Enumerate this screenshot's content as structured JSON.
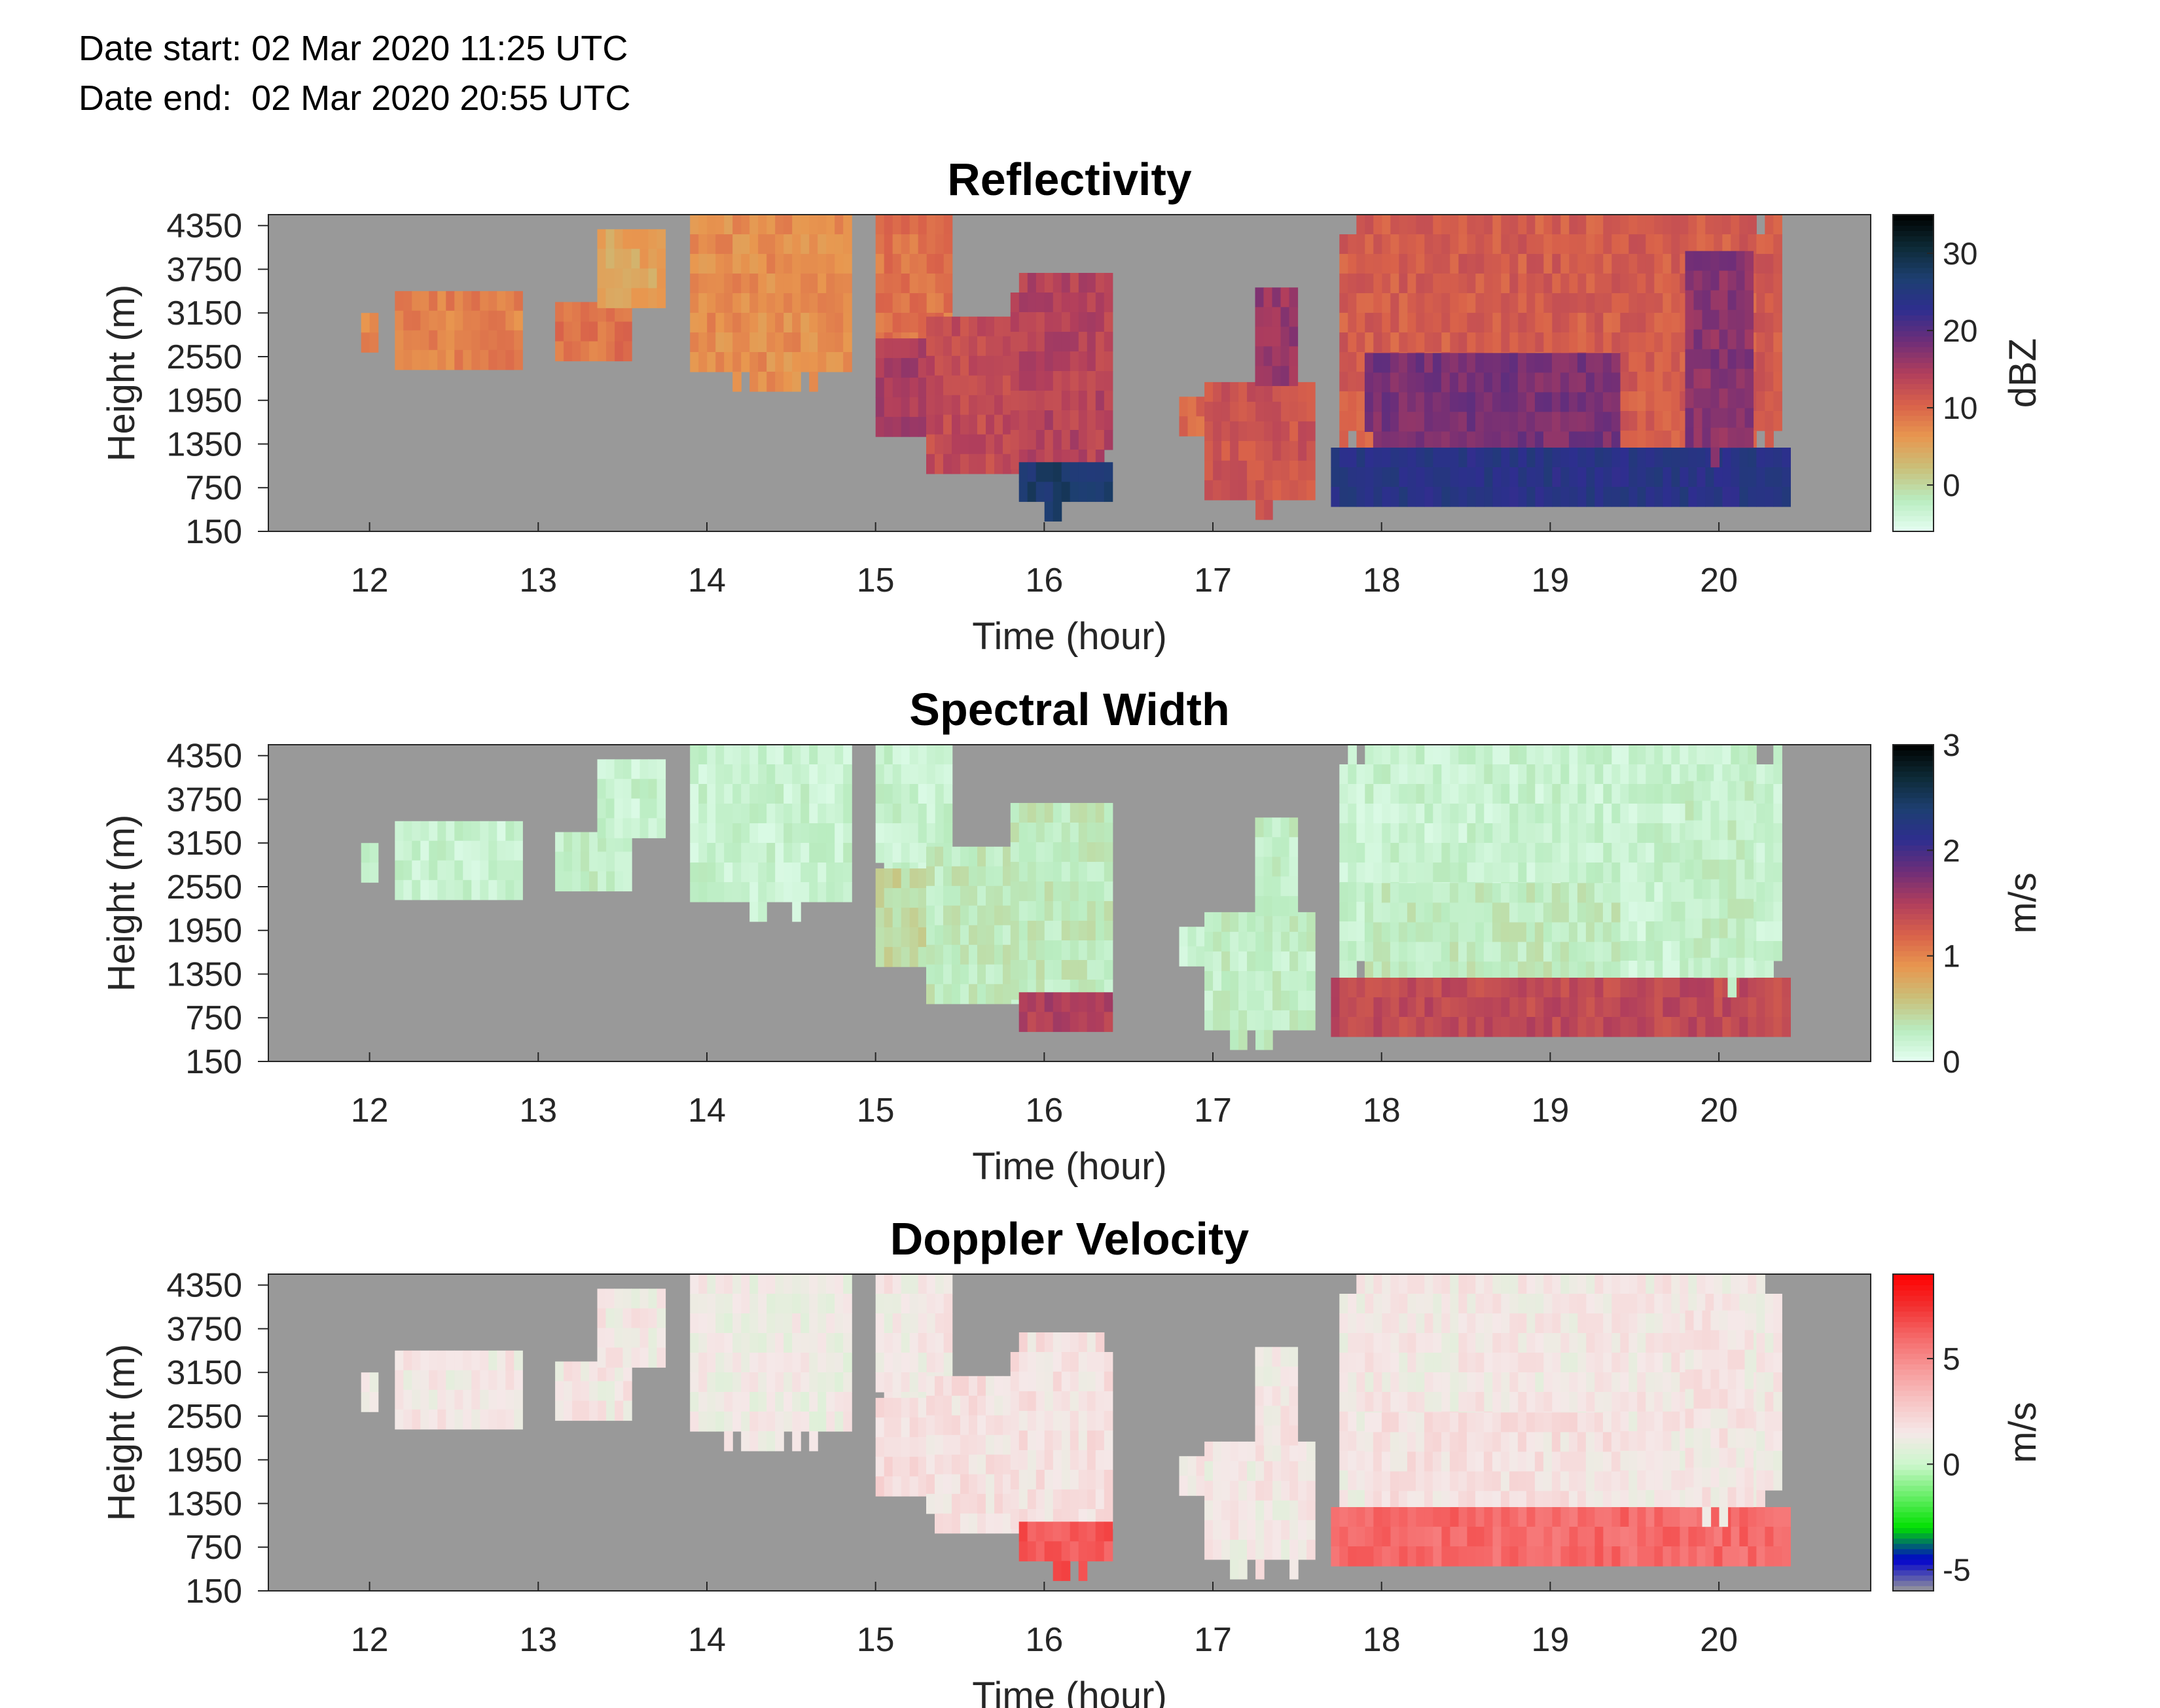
{
  "header": {
    "date_start": "Date start: 02 Mar 2020 11:25 UTC",
    "date_end": "Date end:  02 Mar 2020 20:55 UTC"
  },
  "chart_data": [
    {
      "type": "heatmap",
      "title": "Reflectivity",
      "xlabel": "Time (hour)",
      "ylabel": "Height (m)",
      "xlim": [
        11.4,
        20.9
      ],
      "ylim": [
        150,
        4500
      ],
      "x_ticks": [
        "12",
        "13",
        "14",
        "15",
        "16",
        "17",
        "18",
        "19",
        "20"
      ],
      "y_ticks": [
        "150",
        "750",
        "1350",
        "1950",
        "2550",
        "3150",
        "3750",
        "4350"
      ],
      "colorbar": {
        "label": "dBZ",
        "range": [
          -6,
          35
        ],
        "ticks": [
          "0",
          "10",
          "20",
          "30"
        ],
        "colors": [
          "#e6fff2",
          "#b9ecc0",
          "#c9c07a",
          "#e8974f",
          "#d9624a",
          "#b13e5c",
          "#6e2e78",
          "#2e2e8f",
          "#1d3f70",
          "#0d2a35",
          "#000000"
        ]
      },
      "background_color": "#999999",
      "echo_regions": [
        {
          "t0": 11.95,
          "t1": 12.05,
          "h0": 2700,
          "h1": 3150,
          "value": 7
        },
        {
          "t0": 12.15,
          "t1": 12.9,
          "h0": 2400,
          "h1": 3450,
          "value": 8
        },
        {
          "t0": 13.1,
          "t1": 13.55,
          "h0": 2500,
          "h1": 3300,
          "value": 9
        },
        {
          "t0": 13.35,
          "t1": 13.75,
          "h0": 3300,
          "h1": 4300,
          "value": 5
        },
        {
          "t0": 13.9,
          "t1": 14.85,
          "h0": 2300,
          "h1": 4500,
          "value": 7
        },
        {
          "t0": 15.0,
          "t1": 15.45,
          "h0": 2700,
          "h1": 4500,
          "value": 9
        },
        {
          "t0": 15.0,
          "t1": 15.7,
          "h0": 1500,
          "h1": 2800,
          "value": 15
        },
        {
          "t0": 15.3,
          "t1": 15.9,
          "h0": 1000,
          "h1": 3100,
          "value": 13
        },
        {
          "t0": 15.8,
          "t1": 16.4,
          "h0": 1000,
          "h1": 3700,
          "value": 14
        },
        {
          "t0": 15.85,
          "t1": 16.4,
          "h0": 450,
          "h1": 1100,
          "value": 27
        },
        {
          "t0": 16.8,
          "t1": 16.95,
          "h0": 1500,
          "h1": 2000,
          "value": 10
        },
        {
          "t0": 16.95,
          "t1": 17.6,
          "h0": 500,
          "h1": 2200,
          "value": 12
        },
        {
          "t0": 17.25,
          "t1": 17.5,
          "h0": 2200,
          "h1": 3500,
          "value": 16
        },
        {
          "t0": 17.75,
          "t1": 20.35,
          "h0": 1300,
          "h1": 4500,
          "value": 11
        },
        {
          "t0": 17.9,
          "t1": 19.4,
          "h0": 1300,
          "h1": 2600,
          "value": 18
        },
        {
          "t0": 17.7,
          "t1": 20.4,
          "h0": 450,
          "h1": 1300,
          "value": 24
        },
        {
          "t0": 19.8,
          "t1": 20.2,
          "h0": 1300,
          "h1": 4000,
          "value": 17
        }
      ]
    },
    {
      "type": "heatmap",
      "title": "Spectral Width",
      "xlabel": "Time (hour)",
      "ylabel": "Height (m)",
      "xlim": [
        11.4,
        20.9
      ],
      "ylim": [
        150,
        4500
      ],
      "x_ticks": [
        "12",
        "13",
        "14",
        "15",
        "16",
        "17",
        "18",
        "19",
        "20"
      ],
      "y_ticks": [
        "150",
        "750",
        "1350",
        "1950",
        "2550",
        "3150",
        "3750",
        "4350"
      ],
      "colorbar": {
        "label": "m/s",
        "range": [
          0,
          3
        ],
        "ticks": [
          "0",
          "1",
          "2",
          "3"
        ],
        "colors": [
          "#e6fff2",
          "#b9ecc0",
          "#c9c07a",
          "#e8974f",
          "#d9624a",
          "#b13e5c",
          "#6e2e78",
          "#2e2e8f",
          "#1d3f70",
          "#0d2a35",
          "#000000"
        ]
      },
      "background_color": "#999999",
      "echo_regions": [
        {
          "t0": 11.95,
          "t1": 12.05,
          "h0": 2700,
          "h1": 3150,
          "value": 0.2
        },
        {
          "t0": 12.15,
          "t1": 12.9,
          "h0": 2400,
          "h1": 3450,
          "value": 0.2
        },
        {
          "t0": 13.1,
          "t1": 13.55,
          "h0": 2500,
          "h1": 3300,
          "value": 0.25
        },
        {
          "t0": 13.35,
          "t1": 13.75,
          "h0": 3300,
          "h1": 4300,
          "value": 0.2
        },
        {
          "t0": 13.9,
          "t1": 14.85,
          "h0": 2300,
          "h1": 4500,
          "value": 0.2
        },
        {
          "t0": 15.0,
          "t1": 15.45,
          "h0": 2700,
          "h1": 4500,
          "value": 0.2
        },
        {
          "t0": 15.0,
          "t1": 15.7,
          "h0": 1500,
          "h1": 2800,
          "value": 0.45
        },
        {
          "t0": 15.3,
          "t1": 15.9,
          "h0": 1000,
          "h1": 3100,
          "value": 0.3
        },
        {
          "t0": 15.8,
          "t1": 16.4,
          "h0": 1000,
          "h1": 3700,
          "value": 0.3
        },
        {
          "t0": 15.85,
          "t1": 16.4,
          "h0": 450,
          "h1": 1100,
          "value": 1.5
        },
        {
          "t0": 16.8,
          "t1": 16.95,
          "h0": 1500,
          "h1": 2000,
          "value": 0.2
        },
        {
          "t0": 16.95,
          "t1": 17.6,
          "h0": 500,
          "h1": 2200,
          "value": 0.25
        },
        {
          "t0": 17.25,
          "t1": 17.5,
          "h0": 2200,
          "h1": 3500,
          "value": 0.25
        },
        {
          "t0": 17.75,
          "t1": 20.35,
          "h0": 1300,
          "h1": 4500,
          "value": 0.2
        },
        {
          "t0": 17.9,
          "t1": 19.4,
          "h0": 1300,
          "h1": 2600,
          "value": 0.3
        },
        {
          "t0": 17.7,
          "t1": 20.4,
          "h0": 450,
          "h1": 1300,
          "value": 1.4
        },
        {
          "t0": 19.8,
          "t1": 20.2,
          "h0": 1300,
          "h1": 4000,
          "value": 0.25
        }
      ]
    },
    {
      "type": "heatmap",
      "title": "Doppler Velocity",
      "xlabel": "Time (hour)",
      "ylabel": "Height (m)",
      "xlim": [
        11.4,
        20.9
      ],
      "ylim": [
        150,
        4500
      ],
      "x_ticks": [
        "12",
        "13",
        "14",
        "15",
        "16",
        "17",
        "18",
        "19",
        "20"
      ],
      "y_ticks": [
        "150",
        "750",
        "1350",
        "1950",
        "2550",
        "3150",
        "3750",
        "4350"
      ],
      "colorbar": {
        "label": "m/s",
        "range": [
          -6,
          9
        ],
        "ticks": [
          "-5",
          "0",
          "5"
        ],
        "colors": [
          "#999999",
          "#0000cc",
          "#00e000",
          "#66ee66",
          "#ccf7cc",
          "#f5e8e8",
          "#f7c4c4",
          "#f79a9a",
          "#f56a6a",
          "#f23030",
          "#ff0000"
        ]
      },
      "background_color": "#999999",
      "echo_regions": [
        {
          "t0": 11.95,
          "t1": 12.05,
          "h0": 2700,
          "h1": 3150,
          "value": 1.5
        },
        {
          "t0": 12.15,
          "t1": 12.9,
          "h0": 2400,
          "h1": 3450,
          "value": 1.5
        },
        {
          "t0": 13.1,
          "t1": 13.55,
          "h0": 2500,
          "h1": 3300,
          "value": 1.5
        },
        {
          "t0": 13.35,
          "t1": 13.75,
          "h0": 3300,
          "h1": 4300,
          "value": 1.5
        },
        {
          "t0": 13.9,
          "t1": 14.85,
          "h0": 2300,
          "h1": 4500,
          "value": 1.3
        },
        {
          "t0": 15.0,
          "t1": 15.45,
          "h0": 2700,
          "h1": 4500,
          "value": 1.5
        },
        {
          "t0": 15.0,
          "t1": 15.7,
          "h0": 1500,
          "h1": 2800,
          "value": 2.0
        },
        {
          "t0": 15.3,
          "t1": 15.9,
          "h0": 1000,
          "h1": 3100,
          "value": 1.8
        },
        {
          "t0": 15.8,
          "t1": 16.4,
          "h0": 1000,
          "h1": 3700,
          "value": 1.8
        },
        {
          "t0": 15.85,
          "t1": 16.4,
          "h0": 450,
          "h1": 1100,
          "value": 6.5
        },
        {
          "t0": 16.8,
          "t1": 16.95,
          "h0": 1500,
          "h1": 2000,
          "value": 1.5
        },
        {
          "t0": 16.95,
          "t1": 17.6,
          "h0": 500,
          "h1": 2200,
          "value": 1.5
        },
        {
          "t0": 17.25,
          "t1": 17.5,
          "h0": 2200,
          "h1": 3500,
          "value": 1.5
        },
        {
          "t0": 17.75,
          "t1": 20.35,
          "h0": 1300,
          "h1": 4500,
          "value": 1.5
        },
        {
          "t0": 17.9,
          "t1": 19.4,
          "h0": 1300,
          "h1": 2600,
          "value": 1.8
        },
        {
          "t0": 17.7,
          "t1": 20.4,
          "h0": 450,
          "h1": 1300,
          "value": 6.0
        },
        {
          "t0": 19.8,
          "t1": 20.2,
          "h0": 1300,
          "h1": 4000,
          "value": 1.6
        }
      ]
    }
  ]
}
